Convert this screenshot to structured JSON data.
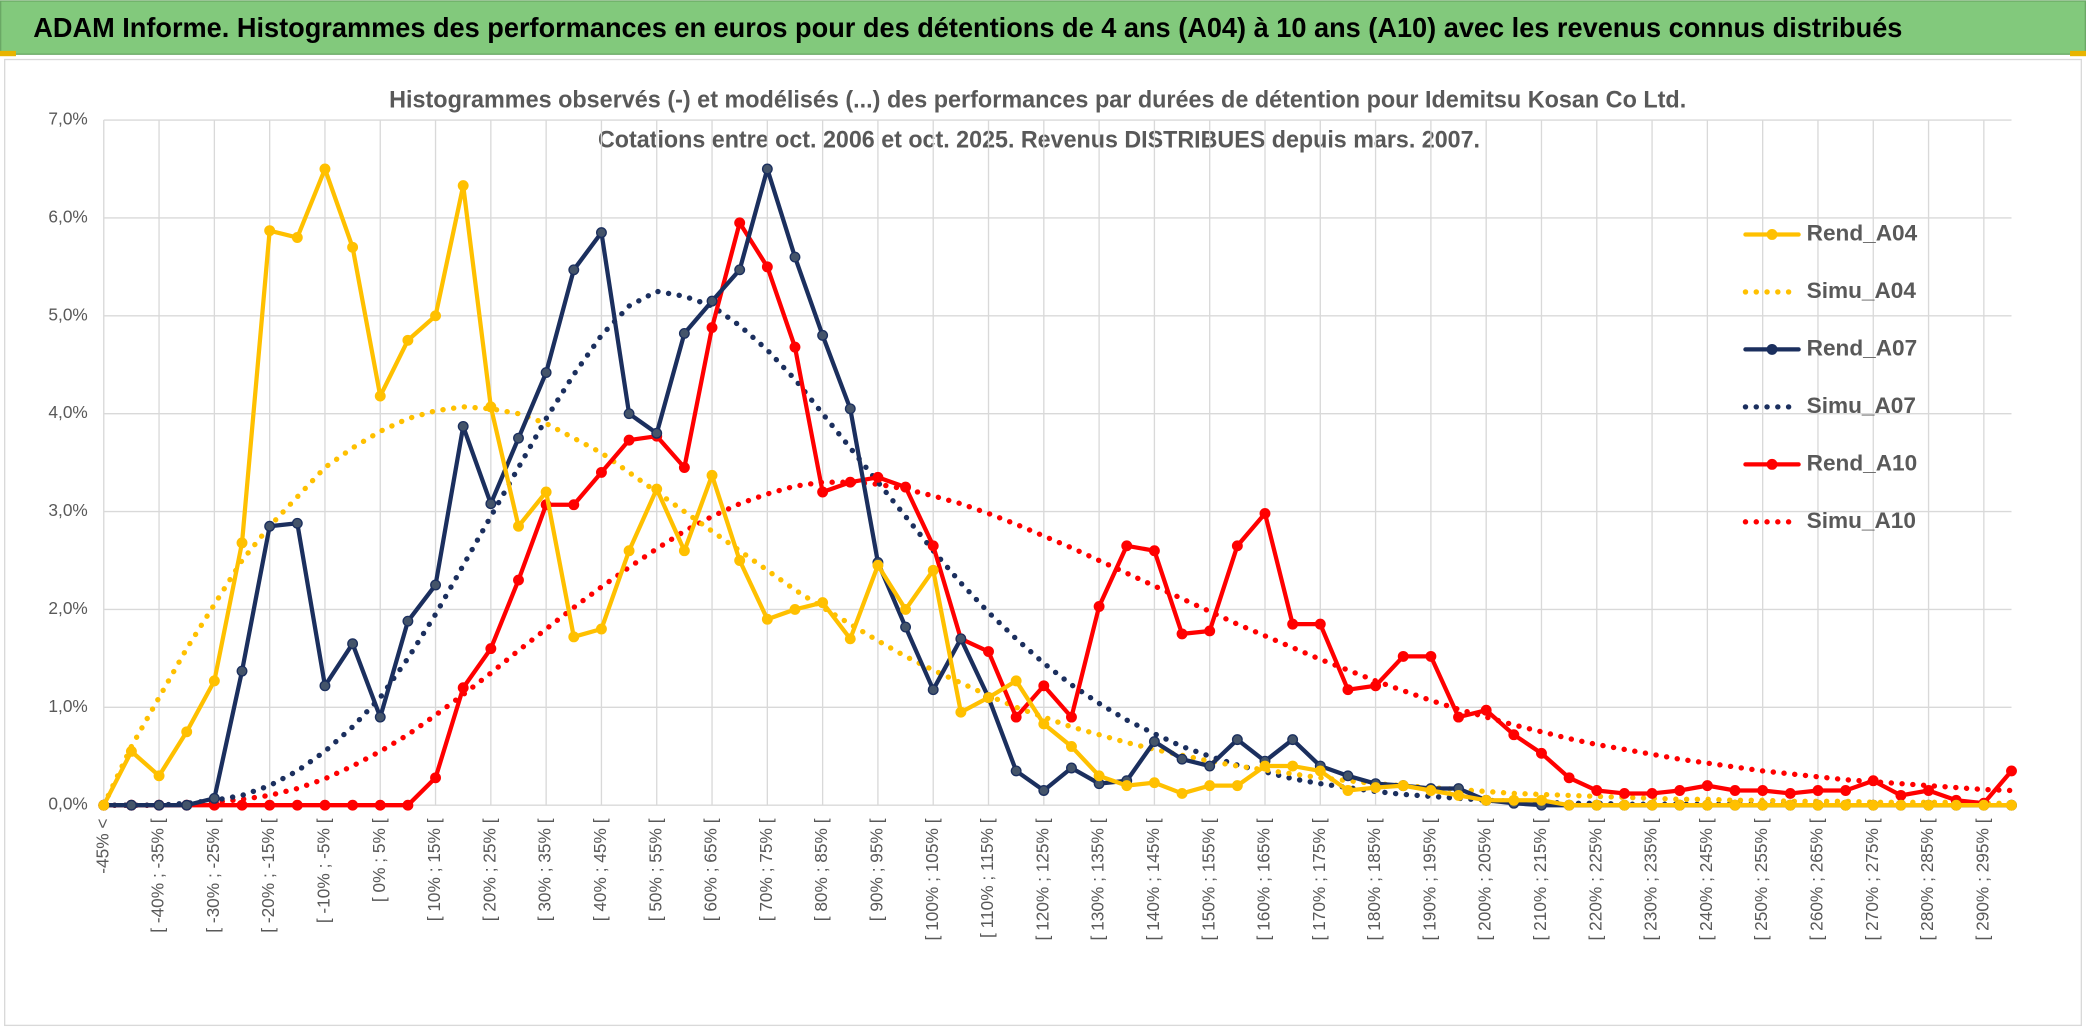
{
  "header": {
    "title": "ADAM Informe. Histogrammes des performances en euros pour des détentions de 4 ans (A04) à 10 ans (A10) avec les revenus connus distribués"
  },
  "chart_data": {
    "type": "line",
    "title": "Histogrammes observés (-) et modélisés (...) des performances par durées de détention pour Idemitsu Kosan Co Ltd.",
    "subtitle": "Cotations entre oct. 2006 et oct. 2025. Revenus DISTRIBUES depuis mars. 2007.",
    "categories": [
      "-45% <",
      null,
      "[ -40% ; -35% [",
      null,
      "[ -30% ; -25% [",
      null,
      "[ -20% ; -15% [",
      null,
      "[ -10% ; -5% [",
      null,
      "[ 0% ; 5% [",
      null,
      "[ 10% ; 15% [",
      null,
      "[ 20% ; 25% [",
      null,
      "[ 30% ; 35% [",
      null,
      "[ 40% ; 45% [",
      null,
      "[ 50% ; 55% [",
      null,
      "[ 60% ; 65% [",
      null,
      "[ 70% ; 75% [",
      null,
      "[ 80% ; 85% [",
      null,
      "[ 90% ; 95% [",
      null,
      "[ 100% ; 105% [",
      null,
      "[ 110% ; 115% [",
      null,
      "[ 120% ; 125% [",
      null,
      "[ 130% ; 135% [",
      null,
      "[ 140% ; 145% [",
      null,
      "[ 150% ; 155% [",
      null,
      "[ 160% ; 165% [",
      null,
      "[ 170% ; 175% [",
      null,
      "[ 180% ; 185% [",
      null,
      "[ 190% ; 195% [",
      null,
      "[ 200% ; 205% [",
      null,
      "[ 210% ; 215% [",
      null,
      "[ 220% ; 225% [",
      null,
      "[ 230% ; 235% [",
      null,
      "[ 240% ; 245% [",
      null,
      "[ 250% ; 255% [",
      null,
      "[ 260% ; 265% [",
      null,
      "[ 270% ; 275% [",
      null,
      "[ 280% ; 285% [",
      null,
      "[ 290% ; 295% [",
      null
    ],
    "ylim": [
      0,
      7
    ],
    "yticks": [
      {
        "value": 0,
        "label": "0,0%"
      },
      {
        "value": 1,
        "label": "1,0%"
      },
      {
        "value": 2,
        "label": "2,0%"
      },
      {
        "value": 3,
        "label": "3,0%"
      },
      {
        "value": 4,
        "label": "4,0%"
      },
      {
        "value": 5,
        "label": "5,0%"
      },
      {
        "value": 6,
        "label": "6,0%"
      },
      {
        "value": 7,
        "label": "7,0%"
      }
    ],
    "grid": true,
    "legend": "right",
    "series": [
      {
        "name": "Rend_A04",
        "color": "#ffc000",
        "line_style": "solid",
        "markers": true,
        "values": [
          0,
          0.55,
          0.3,
          0.75,
          1.27,
          2.68,
          5.87,
          5.8,
          6.5,
          5.7,
          4.18,
          4.75,
          5.0,
          6.33,
          4.07,
          2.85,
          3.2,
          1.72,
          1.8,
          2.6,
          3.23,
          2.6,
          3.37,
          2.5,
          1.9,
          2.0,
          2.07,
          1.7,
          2.45,
          2.0,
          2.4,
          0.95,
          1.1,
          1.27,
          0.83,
          0.6,
          0.3,
          0.2,
          0.23,
          0.12,
          0.2,
          0.2,
          0.4,
          0.4,
          0.35,
          0.15,
          0.18,
          0.2,
          0.15,
          0.1,
          0.05,
          0.05,
          0.05,
          0,
          0,
          0,
          0,
          0,
          0,
          0,
          0,
          0,
          0,
          0,
          0,
          0,
          0,
          0,
          0,
          0
        ]
      },
      {
        "name": "Simu_A04",
        "color": "#ffc000",
        "line_style": "dotted",
        "markers": false,
        "values": [
          0,
          0.6,
          1.1,
          1.6,
          2.05,
          2.5,
          2.85,
          3.15,
          3.45,
          3.65,
          3.82,
          3.95,
          4.03,
          4.07,
          4.05,
          4.0,
          3.9,
          3.75,
          3.6,
          3.4,
          3.2,
          3.0,
          2.8,
          2.6,
          2.4,
          2.2,
          2.02,
          1.85,
          1.68,
          1.52,
          1.38,
          1.25,
          1.12,
          1.0,
          0.9,
          0.8,
          0.72,
          0.64,
          0.57,
          0.51,
          0.45,
          0.4,
          0.36,
          0.32,
          0.28,
          0.25,
          0.22,
          0.2,
          0.18,
          0.16,
          0.14,
          0.12,
          0.11,
          0.1,
          0.09,
          0.08,
          0.07,
          0.06,
          0.06,
          0.05,
          0.05,
          0.04,
          0.04,
          0.04,
          0.03,
          0.03,
          0.03,
          0.03,
          0.02,
          0.02
        ]
      },
      {
        "name": "Rend_A07",
        "color": "#1b2f5e",
        "line_style": "solid",
        "markers": true,
        "values": [
          0,
          0,
          0,
          0,
          0.07,
          1.37,
          2.85,
          2.88,
          1.22,
          1.65,
          0.9,
          1.88,
          2.25,
          3.87,
          3.08,
          3.75,
          4.42,
          5.47,
          5.85,
          4.0,
          3.8,
          4.82,
          5.15,
          5.47,
          6.5,
          5.6,
          4.8,
          4.05,
          2.48,
          1.82,
          1.18,
          1.7,
          1.1,
          0.35,
          0.15,
          0.38,
          0.22,
          0.25,
          0.65,
          0.47,
          0.4,
          0.67,
          0.45,
          0.67,
          0.4,
          0.3,
          0.22,
          0.2,
          0.17,
          0.17,
          0.05,
          0.02,
          0,
          0,
          0,
          0,
          0,
          0,
          0,
          0,
          0,
          0,
          0,
          0,
          0,
          0,
          0,
          0,
          0,
          0
        ]
      },
      {
        "name": "Simu_A07",
        "color": "#1b2f5e",
        "line_style": "dotted",
        "markers": false,
        "values": [
          0,
          0,
          0,
          0.02,
          0.05,
          0.1,
          0.2,
          0.35,
          0.55,
          0.8,
          1.1,
          1.5,
          1.95,
          2.45,
          2.95,
          3.45,
          3.95,
          4.4,
          4.8,
          5.1,
          5.25,
          5.2,
          5.1,
          4.9,
          4.65,
          4.35,
          4.0,
          3.65,
          3.3,
          2.95,
          2.6,
          2.27,
          1.97,
          1.7,
          1.45,
          1.23,
          1.04,
          0.87,
          0.73,
          0.6,
          0.5,
          0.41,
          0.34,
          0.27,
          0.22,
          0.18,
          0.14,
          0.11,
          0.09,
          0.07,
          0.05,
          0.04,
          0.03,
          0.02,
          0.02,
          0.01,
          0.01,
          0.01,
          0.01,
          0.01,
          0.01,
          0.01,
          0.01,
          0.01,
          0.01,
          0.01,
          0.01,
          0.01,
          0.01,
          0.01
        ]
      },
      {
        "name": "Rend_A10",
        "color": "#ff0000",
        "line_style": "solid",
        "markers": true,
        "values": [
          0,
          0,
          0,
          0,
          0,
          0,
          0,
          0,
          0,
          0,
          0,
          0,
          0.28,
          1.2,
          1.6,
          2.3,
          3.07,
          3.07,
          3.4,
          3.73,
          3.77,
          3.45,
          4.88,
          5.95,
          5.5,
          4.68,
          3.2,
          3.3,
          3.35,
          3.25,
          2.65,
          1.7,
          1.57,
          0.9,
          1.22,
          0.9,
          2.03,
          2.65,
          2.6,
          1.75,
          1.78,
          2.65,
          2.98,
          1.85,
          1.85,
          1.18,
          1.22,
          1.52,
          1.52,
          0.9,
          0.97,
          0.72,
          0.53,
          0.28,
          0.15,
          0.12,
          0.12,
          0.15,
          0.2,
          0.15,
          0.15,
          0.12,
          0.15,
          0.15,
          0.25,
          0.1,
          0.15,
          0.05,
          0.02,
          0.35
        ]
      },
      {
        "name": "Simu_A10",
        "color": "#ff0000",
        "line_style": "dotted",
        "markers": false,
        "values": [
          0,
          0,
          0,
          0.01,
          0.03,
          0.06,
          0.1,
          0.17,
          0.27,
          0.4,
          0.55,
          0.72,
          0.92,
          1.13,
          1.35,
          1.58,
          1.8,
          2.02,
          2.23,
          2.43,
          2.62,
          2.8,
          2.95,
          3.08,
          3.18,
          3.26,
          3.3,
          3.3,
          3.28,
          3.23,
          3.16,
          3.08,
          2.98,
          2.87,
          2.75,
          2.63,
          2.5,
          2.37,
          2.24,
          2.11,
          1.98,
          1.85,
          1.73,
          1.61,
          1.49,
          1.38,
          1.27,
          1.17,
          1.07,
          0.98,
          0.9,
          0.82,
          0.75,
          0.68,
          0.62,
          0.57,
          0.52,
          0.47,
          0.43,
          0.39,
          0.35,
          0.32,
          0.29,
          0.26,
          0.24,
          0.22,
          0.2,
          0.18,
          0.16,
          0.15
        ]
      }
    ]
  }
}
